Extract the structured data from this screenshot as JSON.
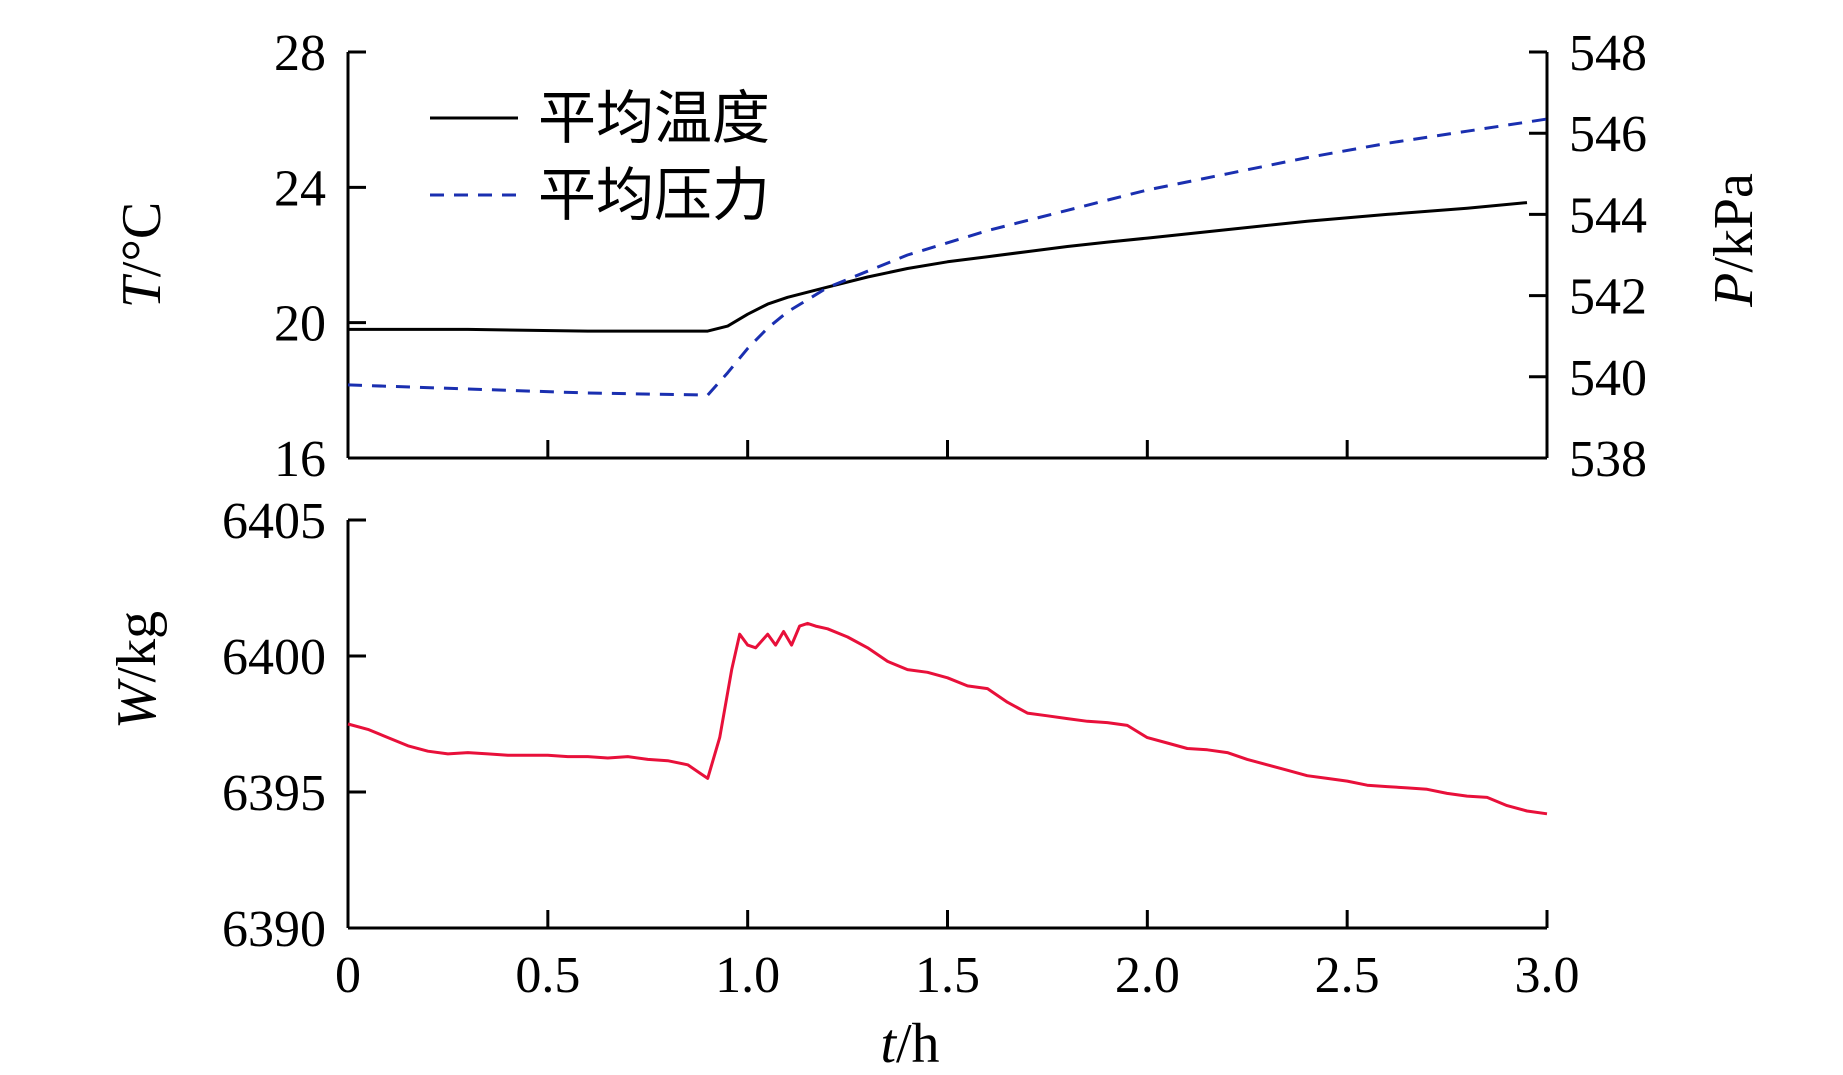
{
  "chart_data": [
    {
      "type": "line",
      "xlim": [
        0,
        3.0
      ],
      "ylim_left": [
        16,
        28
      ],
      "ylim_right": [
        538,
        548
      ],
      "left_ticks": [
        "16",
        "20",
        "24",
        "28"
      ],
      "right_ticks": [
        "538",
        "540",
        "542",
        "544",
        "546",
        "548"
      ],
      "ylabel_left": {
        "var": "T",
        "unit": "/°C"
      },
      "ylabel_right": {
        "var": "P",
        "unit": "/kPa"
      },
      "legend_placement": "top-left",
      "series": [
        {
          "name": "平均温度",
          "axis": "left",
          "color": "#000000",
          "dash": "solid",
          "x": [
            0,
            0.3,
            0.6,
            0.85,
            0.9,
            0.95,
            1.0,
            1.05,
            1.1,
            1.15,
            1.2,
            1.3,
            1.4,
            1.5,
            1.6,
            1.7,
            1.8,
            1.9,
            2.0,
            2.2,
            2.4,
            2.6,
            2.8,
            2.95
          ],
          "y": [
            19.8,
            19.8,
            19.75,
            19.75,
            19.75,
            19.9,
            20.25,
            20.55,
            20.75,
            20.9,
            21.05,
            21.35,
            21.6,
            21.8,
            21.95,
            22.1,
            22.25,
            22.38,
            22.5,
            22.75,
            23.0,
            23.2,
            23.38,
            23.55
          ]
        },
        {
          "name": "平均压力",
          "axis": "right",
          "color": "#1a2fb0",
          "dash": "dashed",
          "x": [
            0,
            0.3,
            0.6,
            0.9,
            0.95,
            1.0,
            1.05,
            1.1,
            1.15,
            1.2,
            1.3,
            1.4,
            1.5,
            1.6,
            1.8,
            2.0,
            2.2,
            2.4,
            2.6,
            2.8,
            3.0
          ],
          "y": [
            539.8,
            539.7,
            539.6,
            539.55,
            540.1,
            540.7,
            541.2,
            541.6,
            541.9,
            542.2,
            542.6,
            543.0,
            543.3,
            543.6,
            544.1,
            544.6,
            545.0,
            545.4,
            545.75,
            546.05,
            546.35
          ]
        }
      ]
    },
    {
      "type": "line",
      "xlim": [
        0,
        3.0
      ],
      "ylim": [
        6390,
        6405
      ],
      "y_ticks": [
        "6390",
        "6395",
        "6400",
        "6405"
      ],
      "x_ticks": [
        "0",
        "0.5",
        "1.0",
        "1.5",
        "2.0",
        "2.5",
        "3.0"
      ],
      "ylabel": {
        "var": "W",
        "unit": "/kg"
      },
      "xlabel": {
        "var": "t",
        "unit": "/h"
      },
      "series": [
        {
          "color": "#e8103a",
          "x": [
            0,
            0.05,
            0.1,
            0.15,
            0.2,
            0.25,
            0.3,
            0.35,
            0.4,
            0.45,
            0.5,
            0.55,
            0.6,
            0.65,
            0.7,
            0.75,
            0.8,
            0.85,
            0.88,
            0.9,
            0.93,
            0.96,
            0.98,
            1.0,
            1.02,
            1.05,
            1.07,
            1.09,
            1.11,
            1.13,
            1.15,
            1.17,
            1.2,
            1.25,
            1.3,
            1.35,
            1.4,
            1.45,
            1.5,
            1.55,
            1.6,
            1.65,
            1.7,
            1.75,
            1.8,
            1.85,
            1.9,
            1.95,
            2.0,
            2.05,
            2.1,
            2.15,
            2.2,
            2.25,
            2.3,
            2.35,
            2.4,
            2.45,
            2.5,
            2.55,
            2.6,
            2.65,
            2.7,
            2.75,
            2.8,
            2.85,
            2.9,
            2.95,
            3.0
          ],
          "y": [
            6397.5,
            6397.3,
            6397.0,
            6396.7,
            6396.5,
            6396.4,
            6396.45,
            6396.4,
            6396.35,
            6396.35,
            6396.35,
            6396.3,
            6396.3,
            6396.25,
            6396.3,
            6396.2,
            6396.15,
            6396.0,
            6395.7,
            6395.5,
            6397.0,
            6399.5,
            6400.8,
            6400.4,
            6400.3,
            6400.8,
            6400.4,
            6400.9,
            6400.4,
            6401.1,
            6401.2,
            6401.1,
            6401.0,
            6400.7,
            6400.3,
            6399.8,
            6399.5,
            6399.4,
            6399.2,
            6398.9,
            6398.8,
            6398.3,
            6397.9,
            6397.8,
            6397.7,
            6397.6,
            6397.55,
            6397.45,
            6397.0,
            6396.8,
            6396.6,
            6396.55,
            6396.45,
            6396.2,
            6396.0,
            6395.8,
            6395.6,
            6395.5,
            6395.4,
            6395.25,
            6395.2,
            6395.15,
            6395.1,
            6394.95,
            6394.85,
            6394.8,
            6394.5,
            6394.3,
            6394.2
          ]
        }
      ]
    }
  ]
}
